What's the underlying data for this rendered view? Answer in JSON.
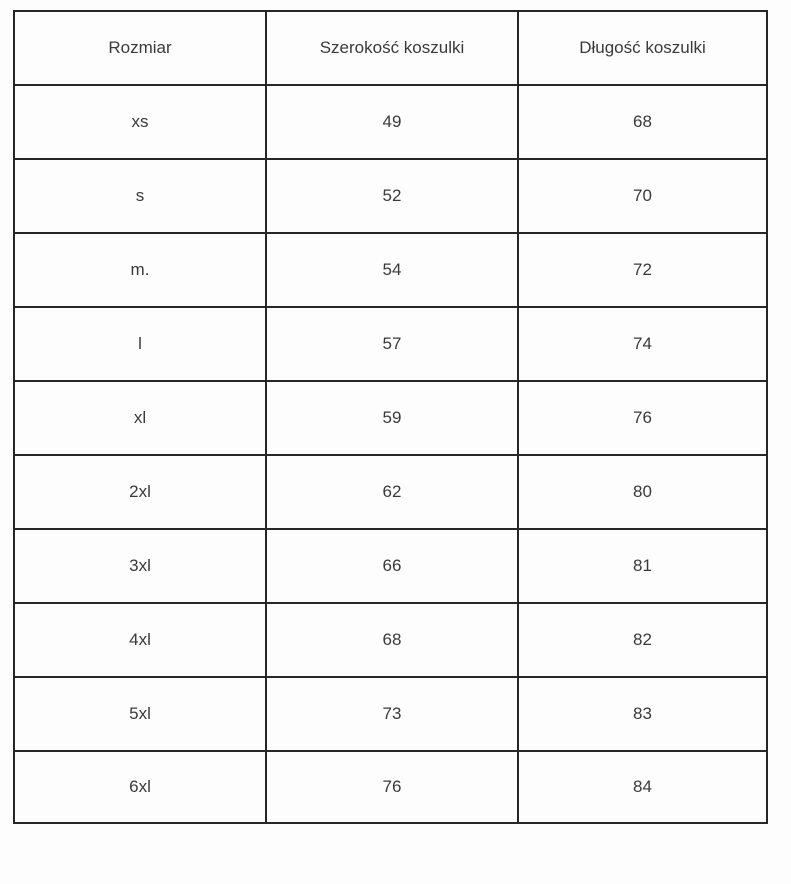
{
  "table": {
    "headers": [
      "Rozmiar",
      "Szerokość koszulki",
      "Długość koszulki"
    ],
    "rows": [
      [
        "xs",
        "49",
        "68"
      ],
      [
        "s",
        "52",
        "70"
      ],
      [
        "m.",
        "54",
        "72"
      ],
      [
        "l",
        "57",
        "74"
      ],
      [
        "xl",
        "59",
        "76"
      ],
      [
        "2xl",
        "62",
        "80"
      ],
      [
        "3xl",
        "66",
        "81"
      ],
      [
        "4xl",
        "68",
        "82"
      ],
      [
        "5xl",
        "73",
        "83"
      ],
      [
        "6xl",
        "76",
        "84"
      ]
    ]
  }
}
